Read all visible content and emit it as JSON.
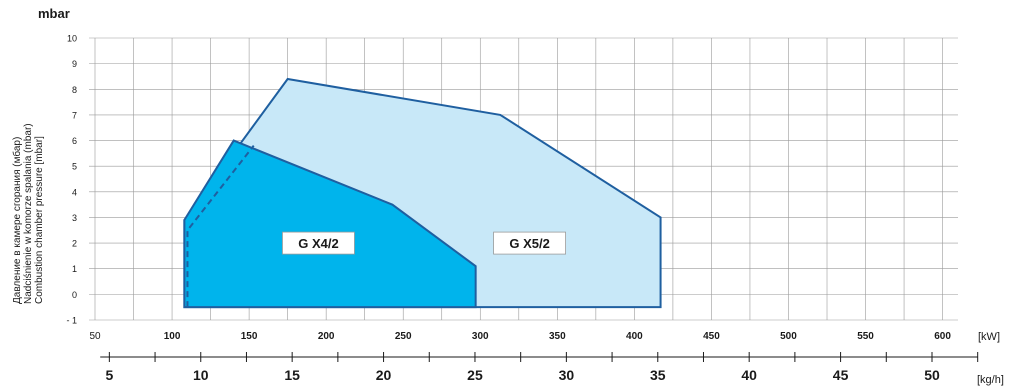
{
  "chart_data": {
    "type": "area",
    "unit_label": "mbar",
    "ylabel_lines": [
      "Давление в камере сгорания (мбар)",
      "Nadciśnienie w komorze spalania (mbar)",
      "Combustion chamber pressure [mbar]"
    ],
    "x_unit_kw": "[kW]",
    "x_unit_kgh": "[kg/h]",
    "x_kw_ticks": [
      "50",
      "100",
      "150",
      "200",
      "250",
      "300",
      "350",
      "400",
      "450",
      "500",
      "550",
      "600"
    ],
    "x_kgh_ticks": [
      "5",
      "10",
      "15",
      "20",
      "25",
      "30",
      "35",
      "40",
      "45",
      "50"
    ],
    "y_ticks": [
      "10",
      "9",
      "8",
      "7",
      "6",
      "5",
      "4",
      "3",
      "2",
      "1",
      "0",
      "- 1"
    ],
    "xlim_kw": [
      50,
      610
    ],
    "ylim": [
      -1,
      10
    ],
    "grid": true,
    "series": [
      {
        "name": "G X5/2",
        "color_fill": "#c8e8f8",
        "color_line": "#1f5fa0",
        "x": [
          108,
          108,
          175,
          313,
          417,
          417
        ],
        "y": [
          -0.5,
          2.9,
          8.4,
          7.0,
          3.0,
          -0.5
        ]
      },
      {
        "name": "G X4/2",
        "color_fill": "#00b4ec",
        "color_line": "#1f5fa0",
        "x": [
          108,
          108,
          140,
          243,
          297,
          297
        ],
        "y": [
          -0.5,
          2.9,
          6.0,
          3.5,
          1.1,
          -0.5
        ]
      }
    ],
    "dashed_line": {
      "x": [
        110,
        110,
        153
      ],
      "y": [
        -0.5,
        2.5,
        5.8
      ]
    },
    "kgh_per_kw": 0.0843
  }
}
